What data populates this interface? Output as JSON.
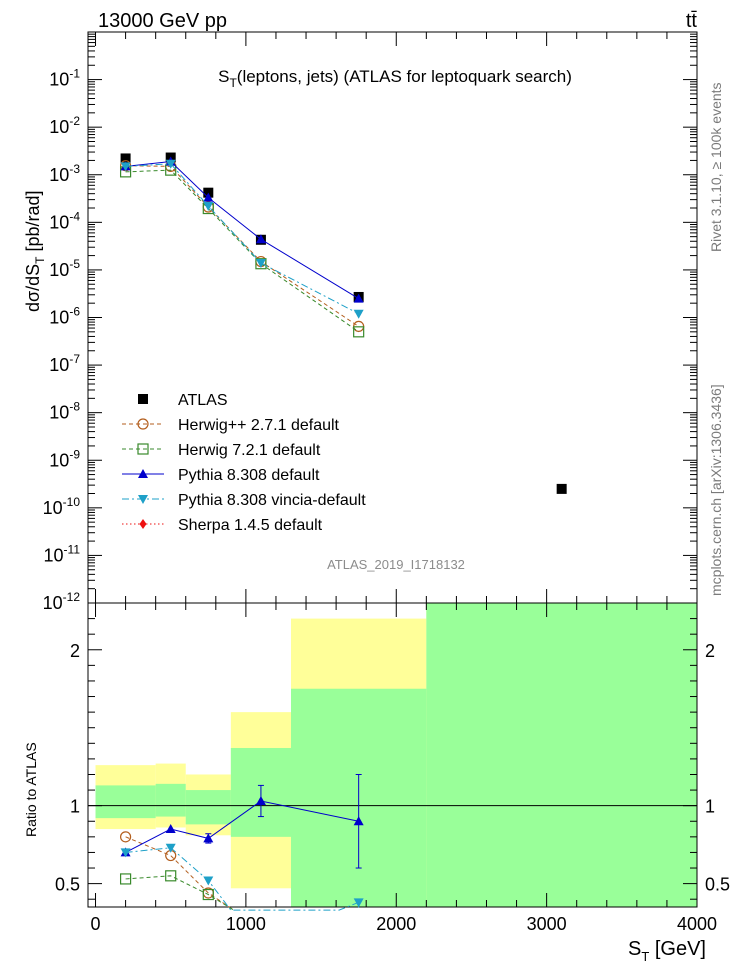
{
  "header": {
    "left": "13000 GeV pp",
    "right": "tt̄"
  },
  "side_text": {
    "rivet": "Rivet 3.1.10, ≥ 100k events",
    "mcplots": "mcplots.cern.ch [arXiv:1306.3436]"
  },
  "chart_data": [
    {
      "type": "line",
      "title": "S_T(leptons, jets) (ATLAS for leptoquark search)",
      "watermark": "ATLAS_2019_I1718132",
      "ylabel": "dσ/dS_T [pb/rad]",
      "yscale": "log",
      "ylim": [
        1e-12,
        1
      ],
      "xlim": [
        -50,
        4000
      ],
      "yticks": [
        {
          "v": 1e-12,
          "l": "10^-12"
        },
        {
          "v": 1e-11,
          "l": "10^-11"
        },
        {
          "v": 1e-10,
          "l": "10^-10"
        },
        {
          "v": 1e-09,
          "l": "10^-9"
        },
        {
          "v": 1e-08,
          "l": "10^-8"
        },
        {
          "v": 1e-07,
          "l": "10^-7"
        },
        {
          "v": 1e-06,
          "l": "10^-6"
        },
        {
          "v": 1e-05,
          "l": "10^-5"
        },
        {
          "v": 0.0001,
          "l": "10^-4"
        },
        {
          "v": 0.001,
          "l": "10^-3"
        },
        {
          "v": 0.01,
          "l": "10^-2"
        },
        {
          "v": 0.1,
          "l": "10^-1"
        }
      ],
      "legend_position": "middle-left",
      "series": [
        {
          "name": "ATLAS",
          "color": "#000000",
          "marker": "square",
          "line": "none",
          "x": [
            200,
            500,
            750,
            1100,
            1750,
            3100
          ],
          "y": [
            0.0022,
            0.0023,
            0.00042,
            4.3e-05,
            2.7e-06,
            2.5e-10
          ]
        },
        {
          "name": "Herwig++ 2.7.1 default",
          "color": "#b35e1d",
          "marker": "open-circle",
          "line": "dashed",
          "x": [
            200,
            500,
            750,
            1100,
            1750
          ],
          "y": [
            0.00155,
            0.0015,
            0.00021,
            1.5e-05,
            6.5e-07
          ]
        },
        {
          "name": "Herwig 7.2.1 default",
          "color": "#3a8a2c",
          "marker": "open-square",
          "line": "dashed",
          "x": [
            200,
            500,
            750,
            1100,
            1750
          ],
          "y": [
            0.00115,
            0.00125,
            0.000195,
            1.35e-05,
            5e-07
          ]
        },
        {
          "name": "Pythia 8.308 default",
          "color": "#0000cc",
          "marker": "triangle-up",
          "line": "solid",
          "x": [
            200,
            500,
            750,
            1100,
            1750
          ],
          "y": [
            0.0015,
            0.0019,
            0.00033,
            4.4e-05,
            2.5e-06
          ]
        },
        {
          "name": "Pythia 8.308 vincia-default",
          "color": "#1ea0c8",
          "marker": "triangle-down",
          "line": "dashdot",
          "x": [
            200,
            500,
            750,
            1100,
            1750
          ],
          "y": [
            0.0015,
            0.0017,
            0.00022,
            1.4e-05,
            1.2e-06
          ]
        },
        {
          "name": "Sherpa 1.4.5 default",
          "color": "#ee1111",
          "marker": "diamond",
          "line": "dotted",
          "x": [],
          "y": []
        }
      ]
    },
    {
      "type": "line",
      "ylabel": "Ratio to ATLAS",
      "xlabel": "S_T [GeV]",
      "ylim": [
        0.35,
        2.3
      ],
      "xlim": [
        -50,
        4000
      ],
      "xticks": [
        0,
        1000,
        2000,
        3000,
        4000
      ],
      "yticks": [
        0.5,
        1,
        2
      ],
      "reference_line": 1,
      "uncertainty_bands": [
        {
          "x0": 0,
          "x1": 400,
          "yellow": [
            0.85,
            1.26
          ],
          "green": [
            0.92,
            1.13
          ]
        },
        {
          "x0": 400,
          "x1": 600,
          "yellow": [
            0.86,
            1.27
          ],
          "green": [
            0.93,
            1.14
          ]
        },
        {
          "x0": 600,
          "x1": 900,
          "yellow": [
            0.81,
            1.2
          ],
          "green": [
            0.88,
            1.1
          ]
        },
        {
          "x0": 900,
          "x1": 1300,
          "yellow": [
            0.47,
            1.6
          ],
          "green": [
            0.8,
            1.37
          ]
        },
        {
          "x0": 1300,
          "x1": 2200,
          "yellow": [
            0.35,
            2.2
          ],
          "green": [
            0.35,
            1.75
          ]
        },
        {
          "x0": 2200,
          "x1": 4000,
          "yellow": [
            0.35,
            2.3
          ],
          "green": [
            0.35,
            2.3
          ]
        }
      ],
      "series": [
        {
          "name": "Herwig++ 2.7.1 default",
          "color": "#b35e1d",
          "marker": "open-circle",
          "line": "dashed",
          "x": [
            200,
            500,
            750,
            920
          ],
          "y": [
            0.8,
            0.68,
            0.44,
            0.33
          ]
        },
        {
          "name": "Herwig 7.2.1 default",
          "color": "#3a8a2c",
          "marker": "open-square",
          "line": "dashed",
          "x": [
            200,
            500,
            750,
            920
          ],
          "y": [
            0.53,
            0.55,
            0.43,
            0.33
          ]
        },
        {
          "name": "Pythia 8.308 default",
          "color": "#0000cc",
          "marker": "triangle-up",
          "line": "solid",
          "x": [
            200,
            500,
            750,
            1100,
            1750
          ],
          "y": [
            0.7,
            0.85,
            0.79,
            1.03,
            0.9
          ],
          "err": [
            0,
            0,
            0.03,
            0.1,
            0.3
          ]
        },
        {
          "name": "Pythia 8.308 vincia-default",
          "color": "#1ea0c8",
          "marker": "triangle-down",
          "line": "dashdot",
          "x": [
            200,
            500,
            750,
            900,
            1620,
            1750,
            1750
          ],
          "y": [
            0.7,
            0.73,
            0.52,
            0.33,
            0.33,
            0.38,
            0.33
          ]
        }
      ]
    }
  ]
}
